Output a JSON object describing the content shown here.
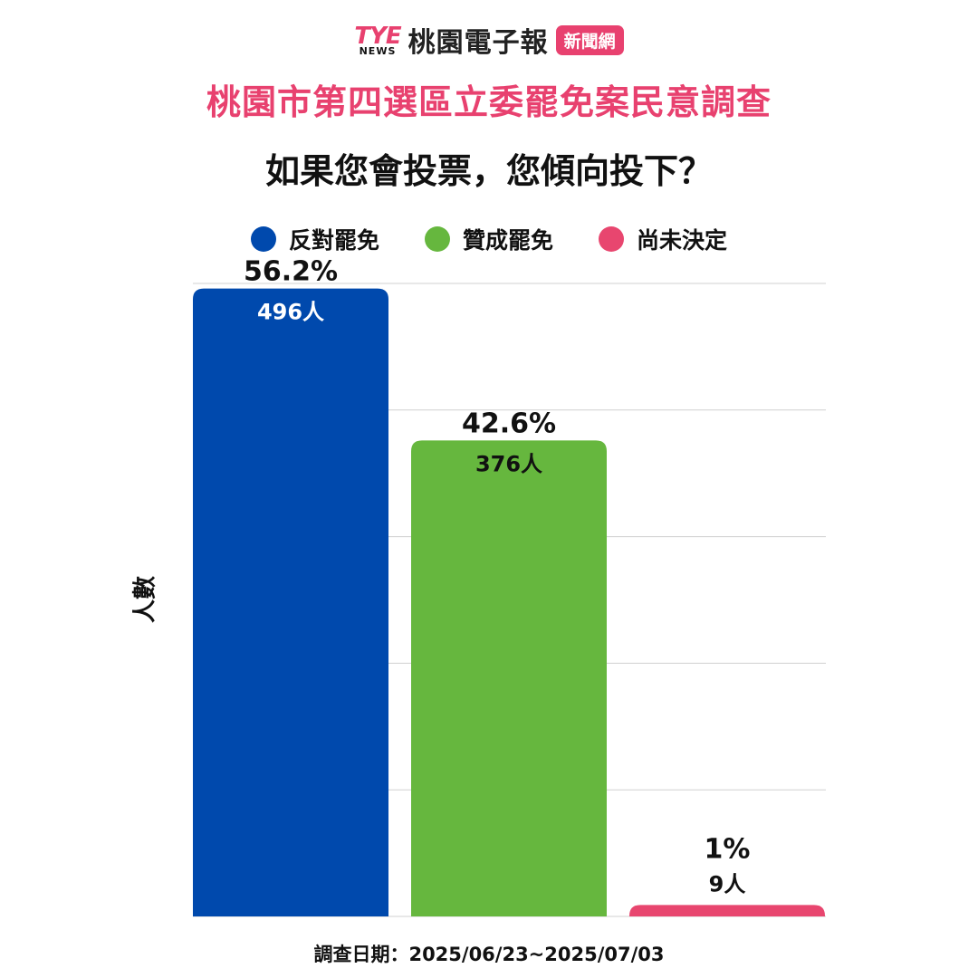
{
  "brand": {
    "logo_top": "TYE",
    "logo_bottom": "NEWS",
    "name": "桃園電子報",
    "badge": "新聞網"
  },
  "survey_title": "桃園市第四選區立委罷免案民意調查",
  "question": "如果您會投票，您傾向投下？",
  "survey_date": "調查日期：2025/06/23~2025/07/03",
  "chart_data": {
    "type": "bar",
    "categories": [
      "反對罷免",
      "贊成罷免",
      "尚未決定"
    ],
    "values": [
      496,
      376,
      9
    ],
    "percent_labels": [
      "56.2%",
      "42.6%",
      "1%"
    ],
    "count_labels": [
      "496人",
      "376人",
      "9人"
    ],
    "colors": [
      "#0049ad",
      "#66b73e",
      "#e8466f"
    ],
    "ylabel": "人數",
    "ylim": [
      0,
      500
    ],
    "grid": true,
    "legend": "top-center",
    "legend_entries": [
      {
        "label": "反對罷免",
        "color": "#0049ad"
      },
      {
        "label": "贊成罷免",
        "color": "#66b73e"
      },
      {
        "label": "尚未決定",
        "color": "#e8466f"
      }
    ]
  }
}
